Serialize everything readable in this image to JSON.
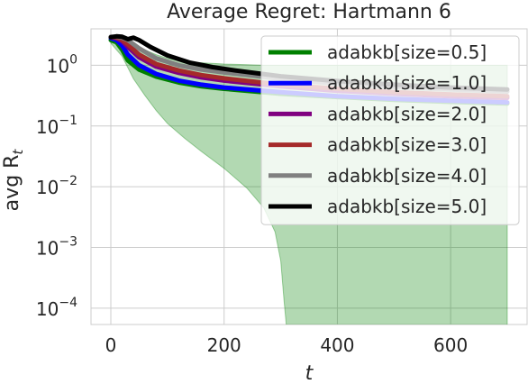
{
  "chart_data": {
    "type": "line",
    "title": "Average Regret: Hartmann 6",
    "xlabel": "t",
    "ylabel_main": "avg R",
    "ylabel_sub": "t",
    "xlim": [
      -35,
      735
    ],
    "ylog": true,
    "ylim_log10": [
      -4.27,
      0.6
    ],
    "grid": true,
    "legend_position": "upper right",
    "x_ticks": [
      {
        "value": 0,
        "label": "0"
      },
      {
        "value": 200,
        "label": "200"
      },
      {
        "value": 400,
        "label": "400"
      },
      {
        "value": 600,
        "label": "600"
      }
    ],
    "y_ticks": [
      {
        "exp": 0,
        "base": "10",
        "sup": "0"
      },
      {
        "exp": -1,
        "base": "10",
        "sup": "−1"
      },
      {
        "exp": -2,
        "base": "10",
        "sup": "−2"
      },
      {
        "exp": -3,
        "base": "10",
        "sup": "−3"
      },
      {
        "exp": -4,
        "base": "10",
        "sup": "−4"
      }
    ],
    "series": [
      {
        "name": "adabkb[size=0.5]",
        "color": "#008000",
        "x": [
          0,
          10,
          20,
          30,
          50,
          80,
          120,
          160,
          200,
          300,
          400,
          500,
          600,
          700
        ],
        "y": [
          2.6,
          2.4,
          1.8,
          1.2,
          0.85,
          0.65,
          0.52,
          0.45,
          0.41,
          0.34,
          0.3,
          0.27,
          0.25,
          0.235
        ]
      },
      {
        "name": "adabkb[size=1.0]",
        "color": "#0000ff",
        "x": [
          0,
          10,
          20,
          30,
          50,
          80,
          120,
          160,
          200,
          300,
          400,
          500,
          600,
          700
        ],
        "y": [
          2.8,
          2.6,
          2.1,
          1.5,
          1.0,
          0.72,
          0.56,
          0.48,
          0.43,
          0.36,
          0.31,
          0.28,
          0.26,
          0.245
        ]
      },
      {
        "name": "adabkb[size=2.0]",
        "color": "#800080",
        "x": [
          0,
          10,
          20,
          30,
          50,
          80,
          120,
          160,
          200,
          300,
          400,
          500,
          600,
          700
        ],
        "y": [
          2.9,
          2.8,
          2.5,
          2.0,
          1.35,
          0.95,
          0.75,
          0.63,
          0.56,
          0.45,
          0.38,
          0.34,
          0.31,
          0.29
        ]
      },
      {
        "name": "adabkb[size=3.0]",
        "color": "#a52a2a",
        "x": [
          0,
          10,
          20,
          30,
          50,
          80,
          120,
          160,
          200,
          300,
          400,
          500,
          600,
          700
        ],
        "y": [
          2.9,
          2.85,
          2.6,
          2.2,
          1.5,
          1.05,
          0.82,
          0.69,
          0.61,
          0.48,
          0.41,
          0.36,
          0.33,
          0.31
        ]
      },
      {
        "name": "adabkb[size=4.0]",
        "color": "#808080",
        "x": [
          0,
          10,
          20,
          30,
          50,
          80,
          120,
          160,
          200,
          300,
          400,
          500,
          600,
          700
        ],
        "y": [
          2.95,
          2.95,
          2.85,
          2.6,
          1.9,
          1.3,
          1.0,
          0.85,
          0.76,
          0.6,
          0.5,
          0.44,
          0.4,
          0.37
        ]
      },
      {
        "name": "adabkb[size=5.0]",
        "color": "#000000",
        "x": [
          0,
          10,
          20,
          30,
          40,
          50,
          70,
          100,
          140,
          180,
          220,
          300,
          400,
          500,
          600,
          700
        ],
        "y": [
          2.9,
          3.0,
          2.95,
          2.7,
          2.85,
          2.6,
          2.0,
          1.45,
          1.1,
          0.93,
          0.82,
          0.66,
          0.55,
          0.48,
          0.43,
          0.4
        ]
      }
    ],
    "band": {
      "series": "adabkb[size=0.5]",
      "color": "#008000",
      "opacity": 0.3,
      "x": [
        0,
        20,
        40,
        60,
        80,
        100,
        130,
        160,
        200,
        240,
        270,
        290,
        300,
        306,
        310,
        400,
        500,
        600,
        700
      ],
      "upper": [
        2.9,
        2.8,
        2.2,
        1.8,
        1.5,
        1.3,
        1.15,
        1.1,
        1.05,
        1.02,
        1.0,
        1.0,
        1.0,
        1.0,
        1.0,
        1.0,
        1.0,
        1.0,
        1.0
      ],
      "lower": [
        2.3,
        1.4,
        0.6,
        0.32,
        0.18,
        0.11,
        0.063,
        0.038,
        0.02,
        0.0095,
        0.0045,
        0.0018,
        0.0006,
        0.00013,
        5e-05,
        5e-05,
        5e-05,
        5e-05,
        5e-05
      ]
    }
  }
}
